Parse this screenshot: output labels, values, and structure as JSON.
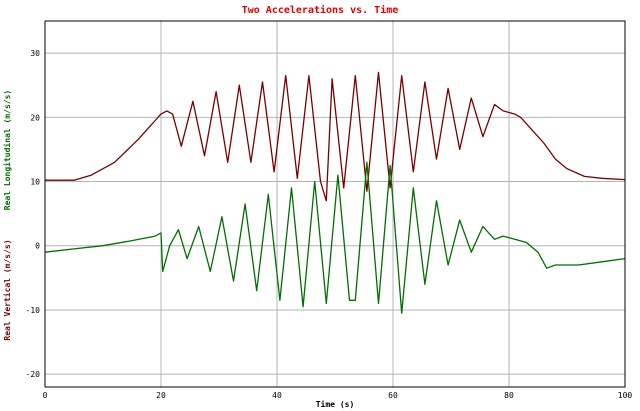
{
  "chart_data": {
    "type": "line",
    "title": "Two Accelerations vs. Time",
    "xlabel": "Time (s)",
    "ylabels": [
      "Real Longitudinal (m/s/s)",
      "Real Vertical (m/s/s)"
    ],
    "xlim": [
      0,
      100
    ],
    "ylim": [
      -22,
      35
    ],
    "x_ticks": [
      "0",
      "20",
      "40",
      "60",
      "80",
      "100"
    ],
    "y_ticks": [
      "-20",
      "-10",
      "0",
      "10",
      "20",
      "30"
    ],
    "grid": true,
    "colors": {
      "title": "#e00000",
      "longitudinal": "#7a0000",
      "vertical": "#006e00",
      "grid": "#b4b4b4",
      "frame": "#000000"
    },
    "series": [
      {
        "name": "Real Longitudinal (m/s/s)",
        "points": [
          [
            0,
            10.2
          ],
          [
            5,
            10.2
          ],
          [
            8,
            11
          ],
          [
            12,
            13
          ],
          [
            16,
            16.5
          ],
          [
            18,
            18.5
          ],
          [
            19,
            19.5
          ],
          [
            20,
            20.5
          ],
          [
            21,
            21
          ],
          [
            22,
            20.5
          ],
          [
            23.5,
            15.5
          ],
          [
            25.5,
            22.5
          ],
          [
            27.5,
            14
          ],
          [
            29.5,
            24
          ],
          [
            31.5,
            13
          ],
          [
            33.5,
            25
          ],
          [
            35.5,
            13
          ],
          [
            37.5,
            25.5
          ],
          [
            39.5,
            11.5
          ],
          [
            41.5,
            26.5
          ],
          [
            43.5,
            10.5
          ],
          [
            45.5,
            26.5
          ],
          [
            47.5,
            10
          ],
          [
            48.5,
            7
          ],
          [
            49.5,
            26
          ],
          [
            51.5,
            9
          ],
          [
            53.5,
            26.5
          ],
          [
            55.5,
            8.5
          ],
          [
            57.5,
            27
          ],
          [
            59.5,
            9
          ],
          [
            61.5,
            26.5
          ],
          [
            63.5,
            11.5
          ],
          [
            65.5,
            25.5
          ],
          [
            67.5,
            13.5
          ],
          [
            69.5,
            24.5
          ],
          [
            71.5,
            15
          ],
          [
            73.5,
            23
          ],
          [
            75.5,
            17
          ],
          [
            77.5,
            22
          ],
          [
            79,
            21
          ],
          [
            81,
            20.5
          ],
          [
            82,
            20
          ],
          [
            84,
            18
          ],
          [
            86,
            16
          ],
          [
            88,
            13.5
          ],
          [
            90,
            12
          ],
          [
            93,
            10.8
          ],
          [
            96,
            10.5
          ],
          [
            100,
            10.3
          ]
        ]
      },
      {
        "name": "Real Vertical (m/s/s)",
        "points": [
          [
            0,
            -1
          ],
          [
            5,
            -0.5
          ],
          [
            10,
            0
          ],
          [
            15,
            0.8
          ],
          [
            19,
            1.5
          ],
          [
            20,
            2
          ],
          [
            20.3,
            -4
          ],
          [
            21.5,
            0
          ],
          [
            23,
            2.5
          ],
          [
            24.5,
            -2
          ],
          [
            26.5,
            3
          ],
          [
            28.5,
            -4
          ],
          [
            30.5,
            4.5
          ],
          [
            32.5,
            -5.5
          ],
          [
            34.5,
            6.5
          ],
          [
            36.5,
            -7
          ],
          [
            38.5,
            8
          ],
          [
            40.5,
            -8.5
          ],
          [
            42.5,
            9
          ],
          [
            44.5,
            -9.5
          ],
          [
            46.5,
            10
          ],
          [
            48.5,
            -9
          ],
          [
            50.5,
            11
          ],
          [
            52.5,
            -8.5
          ],
          [
            53.5,
            -8.5
          ],
          [
            55.5,
            13
          ],
          [
            57.5,
            -9
          ],
          [
            59.5,
            12.5
          ],
          [
            61.5,
            -10.5
          ],
          [
            63.5,
            9
          ],
          [
            65.5,
            -6
          ],
          [
            67.5,
            7
          ],
          [
            69.5,
            -3
          ],
          [
            71.5,
            4
          ],
          [
            73.5,
            -1
          ],
          [
            75.5,
            3
          ],
          [
            77.5,
            1
          ],
          [
            79,
            1.5
          ],
          [
            81,
            1
          ],
          [
            83,
            0.5
          ],
          [
            85,
            -1
          ],
          [
            86.5,
            -3.5
          ],
          [
            88,
            -3
          ],
          [
            92,
            -3
          ],
          [
            96,
            -2.5
          ],
          [
            100,
            -2
          ]
        ]
      }
    ]
  }
}
